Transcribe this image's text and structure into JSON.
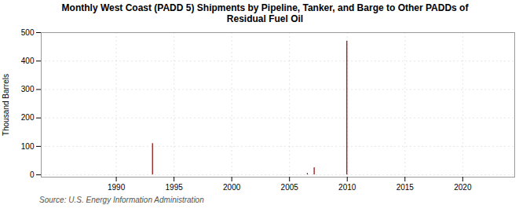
{
  "chart_data": {
    "type": "bar",
    "title": "Monthly West Coast (PADD 5) Shipments by Pipeline, Tanker, and Barge to Other PADDs of\nResidual Fuel Oil",
    "ylabel": "Thousand Barrels",
    "annotations": [
      "Source: U.S. Energy Information Administration"
    ],
    "color": "#8b0000",
    "grid": true,
    "xlim": [
      1983.5,
      2024.5
    ],
    "xticks": [
      1990,
      1995,
      2000,
      2005,
      2010,
      2015,
      2020
    ],
    "ylim": [
      -8,
      500
    ],
    "yticks": [
      0,
      100,
      200,
      300,
      400,
      500
    ],
    "x": [
      1986,
      1986.08,
      1986.17,
      1986.25,
      1986.33,
      1986.42,
      1986.5,
      1986.58,
      1986.67,
      1986.75,
      1986.83,
      1986.92,
      1987,
      1987.08,
      1987.17,
      1987.25,
      1987.33,
      1987.42,
      1987.5,
      1987.58,
      1987.67,
      1987.75,
      1987.83,
      1987.92,
      1988,
      1988.08,
      1988.17,
      1988.25,
      1988.33,
      1988.42,
      1988.5,
      1988.58,
      1988.67,
      1988.75,
      1988.83,
      1988.92,
      1989,
      1989.08,
      1989.17,
      1989.25,
      1989.33,
      1989.42,
      1989.5,
      1989.58,
      1989.67,
      1989.75,
      1989.83,
      1989.92,
      1990,
      1990.08,
      1990.17,
      1990.25,
      1990.33,
      1990.42,
      1990.5,
      1990.58,
      1990.67,
      1990.75,
      1990.83,
      1990.92,
      1991,
      1991.08,
      1991.17,
      1991.25,
      1991.33,
      1991.42,
      1991.5,
      1991.58,
      1991.67,
      1991.75,
      1991.83,
      1991.92,
      1992,
      1992.08,
      1992.17,
      1992.25,
      1992.33,
      1992.42,
      1992.5,
      1992.58,
      1992.67,
      1992.75,
      1992.83,
      1992.92,
      1993,
      1993.08,
      1993.17,
      1993.25,
      1993.33,
      1993.42,
      1993.5,
      1993.58,
      1993.67,
      1993.75,
      1993.83,
      1993.92,
      1994,
      1994.08,
      1994.17,
      1994.25,
      1994.33,
      1994.42,
      1994.5,
      1994.58,
      1994.67,
      1994.75,
      1994.83,
      1994.92,
      1995,
      1995.08,
      1995.17,
      1995.25,
      1995.33,
      1995.42,
      1995.5,
      1995.58,
      1995.67,
      1995.75,
      1995.83,
      1995.92,
      1996,
      1996.08,
      1996.17,
      1996.25,
      1996.33,
      1996.42,
      1996.5,
      1996.58,
      1996.67,
      1996.75,
      1996.83,
      1996.92,
      1997,
      1997.08,
      1997.17,
      1997.25,
      1997.33,
      1997.42,
      1997.5,
      1997.58,
      1997.67,
      1997.75,
      1997.83,
      1997.92,
      1998,
      1998.08,
      1998.17,
      1998.25,
      1998.33,
      1998.42,
      1998.5,
      1998.58,
      1998.67,
      1998.75,
      1998.83,
      1998.92,
      1999,
      1999.08,
      1999.17,
      1999.25,
      1999.33,
      1999.42,
      1999.5,
      1999.58,
      1999.67,
      1999.75,
      1999.83,
      1999.92,
      2000,
      2000.08,
      2000.17,
      2000.25,
      2000.33,
      2000.42,
      2000.5,
      2000.58,
      2000.67,
      2000.75,
      2000.83,
      2000.92,
      2001,
      2001.08,
      2001.17,
      2001.25,
      2001.33,
      2001.42,
      2001.5,
      2001.58,
      2001.67,
      2001.75,
      2001.83,
      2001.92,
      2002,
      2002.08,
      2002.17,
      2002.25,
      2002.33,
      2002.42,
      2002.5,
      2002.58,
      2002.67,
      2002.75,
      2002.83,
      2002.92,
      2003,
      2003.08,
      2003.17,
      2003.25,
      2003.33,
      2003.42,
      2003.5,
      2003.58,
      2003.67,
      2003.75,
      2003.83,
      2003.92,
      2004,
      2004.08,
      2004.17,
      2004.25,
      2004.33,
      2004.42,
      2004.5,
      2004.58,
      2004.67,
      2004.75,
      2004.83,
      2004.92,
      2005,
      2005.08,
      2005.17,
      2005.25,
      2005.33,
      2005.42,
      2005.5,
      2005.58,
      2005.67,
      2005.75,
      2005.83,
      2005.92,
      2006,
      2006.08,
      2006.17,
      2006.25,
      2006.33,
      2006.42,
      2006.5,
      2006.58,
      2006.67,
      2006.75,
      2006.83,
      2006.92,
      2007,
      2007.08,
      2007.17,
      2007.25,
      2007.33,
      2007.42,
      2007.5,
      2007.58,
      2007.67,
      2007.75,
      2007.83,
      2007.92,
      2008,
      2008.08,
      2008.17,
      2008.25,
      2008.33,
      2008.42,
      2008.5,
      2008.58,
      2008.67,
      2008.75,
      2008.83,
      2008.92,
      2009,
      2009.08,
      2009.17,
      2009.25,
      2009.33,
      2009.42,
      2009.5,
      2009.58,
      2009.67,
      2009.75,
      2009.83,
      2009.92,
      2010,
      2010.08,
      2010.17,
      2010.25,
      2010.33,
      2010.42,
      2010.5,
      2010.58,
      2010.67,
      2010.75,
      2010.83,
      2010.92,
      2011,
      2011.08,
      2011.17,
      2011.25,
      2011.33,
      2011.42,
      2011.5,
      2011.58,
      2011.67,
      2011.75,
      2011.83,
      2011.92,
      2012,
      2012.08,
      2012.17,
      2012.25,
      2012.33,
      2012.42,
      2012.5,
      2012.58,
      2012.67,
      2012.75,
      2012.83,
      2012.92,
      2013,
      2013.08,
      2013.17,
      2013.25,
      2013.33,
      2013.42,
      2013.5,
      2013.58,
      2013.67,
      2013.75,
      2013.83,
      2013.92,
      2014,
      2014.08,
      2014.17,
      2014.25,
      2014.33,
      2014.42,
      2014.5,
      2014.58,
      2014.67,
      2014.75,
      2014.83,
      2014.92,
      2015,
      2015.08,
      2015.17,
      2015.25,
      2015.33,
      2015.42,
      2015.5,
      2015.58,
      2015.67,
      2015.75,
      2015.83,
      2015.92,
      2016,
      2016.08,
      2016.17,
      2016.25,
      2016.33,
      2016.42,
      2016.5,
      2016.58,
      2016.67,
      2016.75,
      2016.83,
      2016.92,
      2017,
      2017.08,
      2017.17,
      2017.25,
      2017.33,
      2017.42,
      2017.5,
      2017.58,
      2017.67,
      2017.75,
      2017.83,
      2017.92,
      2018,
      2018.08,
      2018.17,
      2018.25,
      2018.33,
      2018.42,
      2018.5,
      2018.58,
      2018.67,
      2018.75,
      2018.83,
      2018.92,
      2019,
      2019.08,
      2019.17,
      2019.25,
      2019.33,
      2019.42,
      2019.5,
      2019.58,
      2019.67,
      2019.75,
      2019.83,
      2019.92,
      2020,
      2020.08,
      2020.17,
      2020.25,
      2020.33,
      2020.42,
      2020.5,
      2020.58,
      2020.67,
      2020.75,
      2020.83,
      2020.92,
      2021,
      2021.08,
      2021.17,
      2021.25,
      2021.33,
      2021.42,
      2021.5,
      2021.58,
      2021.67,
      2021.75,
      2021.83,
      2021.92,
      2022,
      2022.08,
      2022.17,
      2022.25,
      2022.33,
      2022.42,
      2022.5,
      2022.58,
      2022.67,
      2022.75,
      2022.83,
      2022.92,
      2023,
      2023.08,
      2023.17,
      2023.25,
      2023.33,
      2023.42
    ],
    "values": [
      0,
      0,
      0,
      0,
      0,
      0,
      0,
      0,
      0,
      0,
      0,
      0,
      0,
      0,
      0,
      0,
      0,
      0,
      0,
      0,
      0,
      0,
      0,
      0,
      0,
      0,
      0,
      0,
      0,
      0,
      0,
      0,
      0,
      0,
      0,
      0,
      0,
      0,
      0,
      0,
      0,
      0,
      0,
      0,
      0,
      0,
      0,
      0,
      0,
      0,
      0,
      0,
      0,
      0,
      0,
      0,
      0,
      0,
      0,
      0,
      0,
      0,
      0,
      0,
      0,
      0,
      0,
      0,
      0,
      0,
      0,
      0,
      0,
      0,
      0,
      0,
      0,
      0,
      0,
      0,
      0,
      0,
      0,
      0,
      0,
      0,
      110,
      0,
      0,
      0,
      0,
      0,
      0,
      0,
      0,
      0,
      0,
      0,
      0,
      0,
      0,
      0,
      0,
      0,
      0,
      0,
      0,
      0,
      0,
      0,
      0,
      0,
      0,
      0,
      0,
      0,
      0,
      0,
      0,
      0,
      0,
      0,
      0,
      0,
      0,
      0,
      0,
      0,
      0,
      0,
      0,
      0,
      0,
      0,
      0,
      0,
      0,
      0,
      0,
      0,
      0,
      0,
      0,
      0,
      0,
      0,
      0,
      0,
      0,
      0,
      0,
      0,
      0,
      0,
      0,
      0,
      0,
      0,
      0,
      0,
      0,
      0,
      0,
      0,
      0,
      0,
      0,
      0,
      0,
      0,
      0,
      0,
      0,
      0,
      0,
      0,
      0,
      0,
      0,
      0,
      0,
      0,
      0,
      0,
      0,
      0,
      0,
      0,
      0,
      0,
      0,
      0,
      0,
      0,
      0,
      0,
      0,
      0,
      0,
      0,
      0,
      0,
      0,
      0,
      0,
      0,
      0,
      0,
      0,
      0,
      0,
      0,
      0,
      0,
      0,
      0,
      0,
      0,
      0,
      0,
      0,
      0,
      0,
      0,
      0,
      0,
      0,
      0,
      0,
      0,
      0,
      0,
      0,
      0,
      0,
      0,
      0,
      0,
      0,
      0,
      0,
      0,
      0,
      0,
      0,
      0,
      0,
      5,
      0,
      0,
      0,
      0,
      0,
      0,
      25,
      0,
      0,
      0,
      0,
      0,
      0,
      0,
      0,
      0,
      0,
      0,
      0,
      0,
      0,
      0,
      0,
      0,
      0,
      0,
      0,
      0,
      0,
      0,
      0,
      0,
      0,
      0,
      0,
      0,
      0,
      0,
      0,
      0,
      470,
      0,
      0,
      0,
      0,
      0,
      0,
      0,
      0,
      0,
      0,
      0,
      0,
      0,
      0,
      0,
      0,
      0,
      0,
      0,
      0,
      0,
      0,
      0,
      0,
      0,
      0,
      0,
      0,
      0,
      0,
      0,
      0,
      0,
      0,
      0,
      0,
      0,
      0,
      0,
      0,
      0,
      0,
      0,
      0,
      0,
      0,
      0,
      0,
      0,
      0,
      0,
      0,
      0,
      0,
      0,
      0,
      0,
      0,
      0,
      0,
      0,
      0,
      0,
      0,
      0,
      0,
      0,
      0,
      0,
      0,
      0,
      0,
      0,
      0,
      0,
      0,
      0,
      0,
      0,
      0,
      0,
      0,
      0,
      0,
      0,
      0,
      0,
      0,
      0,
      0,
      0,
      0,
      0,
      0,
      0,
      0,
      0,
      0,
      0,
      0,
      0,
      0,
      0,
      0,
      0,
      0,
      0,
      0,
      0,
      0,
      0,
      0,
      0,
      0,
      0,
      0,
      0,
      0,
      0,
      0,
      0,
      0,
      0,
      0,
      0,
      0,
      0,
      0,
      0,
      0,
      0,
      0,
      0,
      0,
      0,
      0,
      0,
      0,
      0,
      0,
      0,
      0,
      0,
      0,
      0,
      0,
      0,
      0,
      0,
      0,
      0,
      0,
      0,
      0,
      0,
      0,
      0,
      0,
      0,
      0,
      0
    ]
  }
}
